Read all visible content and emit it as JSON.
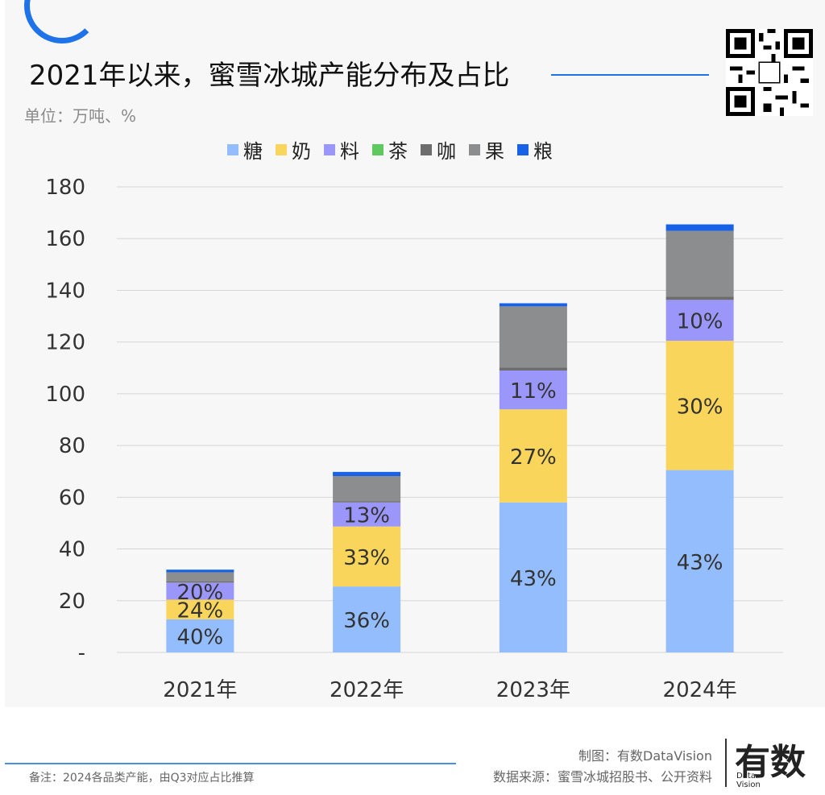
{
  "title": "2021年以来，蜜雪冰城产能分布及占比",
  "unit": "单位：万吨、%",
  "legend": [
    {
      "label": "糖",
      "color": "#93bdfc"
    },
    {
      "label": "奶",
      "color": "#f9d65b"
    },
    {
      "label": "料",
      "color": "#9b97fa"
    },
    {
      "label": "茶",
      "color": "#5ec95e"
    },
    {
      "label": "咖",
      "color": "#6d6d6d"
    },
    {
      "label": "果",
      "color": "#8b8d8e"
    },
    {
      "label": "粮",
      "color": "#1762e6"
    }
  ],
  "chart_data": {
    "type": "bar",
    "stacked": true,
    "categories": [
      "2021年",
      "2022年",
      "2023年",
      "2024年"
    ],
    "ylim": [
      0,
      180
    ],
    "yticks": [
      "-",
      "20",
      "40",
      "60",
      "80",
      "100",
      "120",
      "140",
      "160",
      "180"
    ],
    "grid": true,
    "legend_position": "top",
    "series": [
      {
        "name": "糖",
        "values": [
          12.8,
          25.5,
          58,
          70.5
        ],
        "labels": [
          "40%",
          "36%",
          "43%",
          "43%"
        ]
      },
      {
        "name": "奶",
        "values": [
          7.6,
          23.2,
          36,
          50
        ],
        "labels": [
          "24%",
          "33%",
          "27%",
          "30%"
        ]
      },
      {
        "name": "料",
        "values": [
          6.6,
          9.3,
          15,
          15.8
        ],
        "labels": [
          "20%",
          "13%",
          "11%",
          "10%"
        ]
      },
      {
        "name": "茶",
        "values": [
          0,
          0,
          0,
          0
        ],
        "labels": [
          "",
          "",
          "",
          ""
        ]
      },
      {
        "name": "咖",
        "values": [
          0.4,
          0.4,
          1.2,
          1.2
        ],
        "labels": [
          "",
          "",
          "",
          ""
        ]
      },
      {
        "name": "果",
        "values": [
          3.6,
          9.8,
          23.6,
          25.5
        ],
        "labels": [
          "",
          "",
          "",
          ""
        ]
      },
      {
        "name": "粮",
        "values": [
          1.0,
          1.6,
          1.2,
          2.5
        ],
        "labels": [
          "",
          "",
          "",
          ""
        ]
      }
    ]
  },
  "footer": {
    "note": "备注：2024各品类产能，由Q3对应占比推算",
    "credit_line1": "制图：有数DataVision",
    "credit_line2": "数据来源：蜜雪冰城招股书、公开资料",
    "logo_text": "有数",
    "logo_sub1": "Data",
    "logo_sub2": "Vision"
  }
}
